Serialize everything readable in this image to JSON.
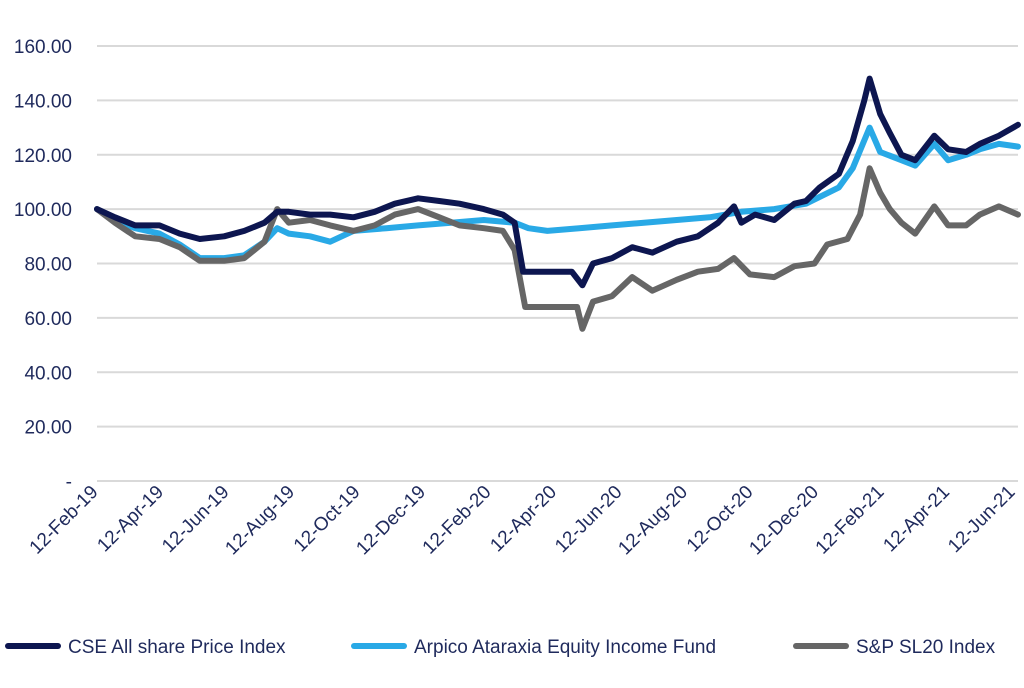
{
  "chart_data": {
    "type": "line",
    "title": "",
    "xlabel": "",
    "ylabel": "",
    "ylim": [
      0,
      160
    ],
    "y_ticks": [
      {
        "value": 160,
        "label": "160.00"
      },
      {
        "value": 140,
        "label": "140.00"
      },
      {
        "value": 120,
        "label": "120.00"
      },
      {
        "value": 100,
        "label": "100.00"
      },
      {
        "value": 80,
        "label": "80.00"
      },
      {
        "value": 60,
        "label": "60.00"
      },
      {
        "value": 40,
        "label": "40.00"
      },
      {
        "value": 20,
        "label": "20.00"
      },
      {
        "value": 0,
        "label": "-"
      }
    ],
    "x_ticks": [
      "12-Feb-19",
      "12-Apr-19",
      "12-Jun-19",
      "12-Aug-19",
      "12-Oct-19",
      "12-Dec-19",
      "12-Feb-20",
      "12-Apr-20",
      "12-Jun-20",
      "12-Aug-20",
      "12-Oct-20",
      "12-Dec-20",
      "12-Feb-21",
      "12-Apr-21",
      "12-Jun-21"
    ],
    "x_range": [
      "2019-02-12",
      "2021-06-30"
    ],
    "grid": true,
    "legend_position": "bottom",
    "series": [
      {
        "name": "CSE All share Price Index",
        "color": "#0d1650",
        "points": [
          [
            "2019-02-12",
            100
          ],
          [
            "2019-03-01",
            97
          ],
          [
            "2019-03-20",
            94
          ],
          [
            "2019-04-12",
            94
          ],
          [
            "2019-05-01",
            91
          ],
          [
            "2019-05-20",
            89
          ],
          [
            "2019-06-12",
            90
          ],
          [
            "2019-07-01",
            92
          ],
          [
            "2019-07-20",
            95
          ],
          [
            "2019-08-01",
            99
          ],
          [
            "2019-08-12",
            99
          ],
          [
            "2019-09-01",
            98
          ],
          [
            "2019-09-20",
            98
          ],
          [
            "2019-10-12",
            97
          ],
          [
            "2019-11-01",
            99
          ],
          [
            "2019-11-20",
            102
          ],
          [
            "2019-12-12",
            104
          ],
          [
            "2020-01-01",
            103
          ],
          [
            "2020-01-20",
            102
          ],
          [
            "2020-02-12",
            100
          ],
          [
            "2020-03-01",
            98
          ],
          [
            "2020-03-12",
            95
          ],
          [
            "2020-03-20",
            77
          ],
          [
            "2020-04-12",
            77
          ],
          [
            "2020-05-05",
            77
          ],
          [
            "2020-05-15",
            72
          ],
          [
            "2020-05-25",
            80
          ],
          [
            "2020-06-12",
            82
          ],
          [
            "2020-07-01",
            86
          ],
          [
            "2020-07-20",
            84
          ],
          [
            "2020-08-12",
            88
          ],
          [
            "2020-09-01",
            90
          ],
          [
            "2020-09-20",
            95
          ],
          [
            "2020-10-05",
            101
          ],
          [
            "2020-10-12",
            95
          ],
          [
            "2020-10-25",
            98
          ],
          [
            "2020-11-12",
            96
          ],
          [
            "2020-12-01",
            102
          ],
          [
            "2020-12-12",
            103
          ],
          [
            "2020-12-25",
            108
          ],
          [
            "2021-01-12",
            113
          ],
          [
            "2021-01-25",
            125
          ],
          [
            "2021-02-05",
            140
          ],
          [
            "2021-02-10",
            148
          ],
          [
            "2021-02-20",
            135
          ],
          [
            "2021-03-01",
            128
          ],
          [
            "2021-03-12",
            120
          ],
          [
            "2021-03-25",
            118
          ],
          [
            "2021-04-12",
            127
          ],
          [
            "2021-04-25",
            122
          ],
          [
            "2021-05-12",
            121
          ],
          [
            "2021-05-25",
            124
          ],
          [
            "2021-06-12",
            127
          ],
          [
            "2021-06-30",
            131
          ]
        ]
      },
      {
        "name": "Arpico Ataraxia Equity Income Fund",
        "color": "#29a9e6",
        "points": [
          [
            "2019-02-12",
            100
          ],
          [
            "2019-03-01",
            96
          ],
          [
            "2019-03-20",
            93
          ],
          [
            "2019-04-12",
            91
          ],
          [
            "2019-05-01",
            87
          ],
          [
            "2019-05-20",
            82
          ],
          [
            "2019-06-12",
            82
          ],
          [
            "2019-07-01",
            83
          ],
          [
            "2019-07-20",
            88
          ],
          [
            "2019-08-01",
            93
          ],
          [
            "2019-08-12",
            91
          ],
          [
            "2019-09-01",
            90
          ],
          [
            "2019-09-20",
            88
          ],
          [
            "2019-10-12",
            92
          ],
          [
            "2019-11-12",
            93
          ],
          [
            "2019-12-12",
            94
          ],
          [
            "2020-01-12",
            95
          ],
          [
            "2020-02-12",
            96
          ],
          [
            "2020-03-12",
            95
          ],
          [
            "2020-03-25",
            93
          ],
          [
            "2020-04-12",
            92
          ],
          [
            "2020-05-12",
            93
          ],
          [
            "2020-06-12",
            94
          ],
          [
            "2020-07-12",
            95
          ],
          [
            "2020-08-12",
            96
          ],
          [
            "2020-09-12",
            97
          ],
          [
            "2020-10-12",
            99
          ],
          [
            "2020-11-12",
            100
          ],
          [
            "2020-12-12",
            102
          ],
          [
            "2021-01-12",
            108
          ],
          [
            "2021-01-25",
            115
          ],
          [
            "2021-02-10",
            130
          ],
          [
            "2021-02-20",
            121
          ],
          [
            "2021-03-12",
            118
          ],
          [
            "2021-03-25",
            116
          ],
          [
            "2021-04-12",
            124
          ],
          [
            "2021-04-25",
            118
          ],
          [
            "2021-05-12",
            120
          ],
          [
            "2021-05-25",
            122
          ],
          [
            "2021-06-12",
            124
          ],
          [
            "2021-06-30",
            123
          ]
        ]
      },
      {
        "name": "S&P SL20 Index",
        "color": "#666666",
        "points": [
          [
            "2019-02-12",
            100
          ],
          [
            "2019-03-01",
            95
          ],
          [
            "2019-03-20",
            90
          ],
          [
            "2019-04-12",
            89
          ],
          [
            "2019-05-01",
            86
          ],
          [
            "2019-05-20",
            81
          ],
          [
            "2019-06-12",
            81
          ],
          [
            "2019-07-01",
            82
          ],
          [
            "2019-07-20",
            88
          ],
          [
            "2019-08-01",
            100
          ],
          [
            "2019-08-12",
            95
          ],
          [
            "2019-09-01",
            96
          ],
          [
            "2019-09-20",
            94
          ],
          [
            "2019-10-12",
            92
          ],
          [
            "2019-11-01",
            94
          ],
          [
            "2019-11-20",
            98
          ],
          [
            "2019-12-12",
            100
          ],
          [
            "2020-01-01",
            97
          ],
          [
            "2020-01-20",
            94
          ],
          [
            "2020-02-12",
            93
          ],
          [
            "2020-03-01",
            92
          ],
          [
            "2020-03-12",
            85
          ],
          [
            "2020-03-22",
            64
          ],
          [
            "2020-04-12",
            64
          ],
          [
            "2020-05-10",
            64
          ],
          [
            "2020-05-15",
            56
          ],
          [
            "2020-05-25",
            66
          ],
          [
            "2020-06-12",
            68
          ],
          [
            "2020-07-01",
            75
          ],
          [
            "2020-07-20",
            70
          ],
          [
            "2020-08-12",
            74
          ],
          [
            "2020-09-01",
            77
          ],
          [
            "2020-09-20",
            78
          ],
          [
            "2020-10-05",
            82
          ],
          [
            "2020-10-20",
            76
          ],
          [
            "2020-11-12",
            75
          ],
          [
            "2020-12-01",
            79
          ],
          [
            "2020-12-20",
            80
          ],
          [
            "2021-01-01",
            87
          ],
          [
            "2021-01-20",
            89
          ],
          [
            "2021-02-01",
            98
          ],
          [
            "2021-02-10",
            115
          ],
          [
            "2021-02-20",
            106
          ],
          [
            "2021-03-01",
            100
          ],
          [
            "2021-03-12",
            95
          ],
          [
            "2021-03-25",
            91
          ],
          [
            "2021-04-12",
            101
          ],
          [
            "2021-04-25",
            94
          ],
          [
            "2021-05-12",
            94
          ],
          [
            "2021-05-25",
            98
          ],
          [
            "2021-06-12",
            101
          ],
          [
            "2021-06-30",
            98
          ]
        ]
      }
    ]
  }
}
